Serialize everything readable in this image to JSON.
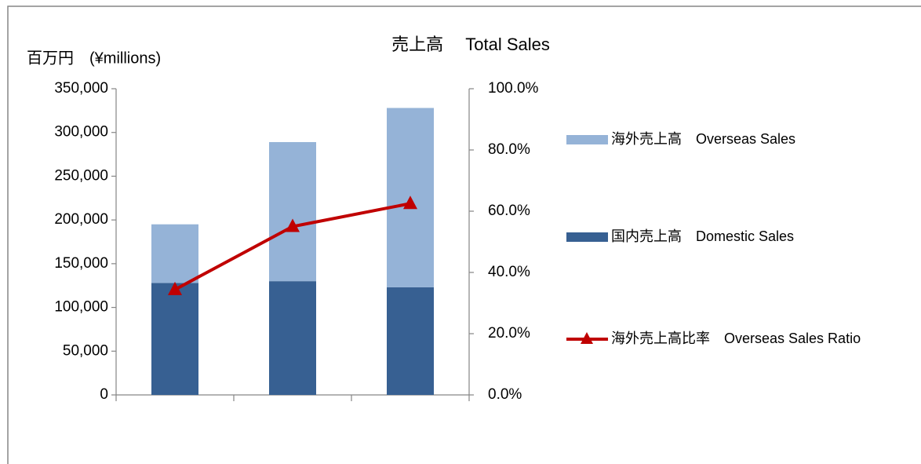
{
  "chart_data": {
    "type": "bar",
    "stacked": true,
    "title": "売上高　 Total Sales",
    "y_label": "百万円　(¥millions)",
    "categories": [
      null,
      null,
      null
    ],
    "series": [
      {
        "name": "国内売上高　Domestic Sales",
        "color": "#376092",
        "values": [
          128000,
          130000,
          123000
        ]
      },
      {
        "name": "海外売上高　Overseas Sales",
        "color": "#95b3d7",
        "values": [
          67000,
          159000,
          205000
        ]
      },
      {
        "name": "海外売上高比率　Overseas Sales Ratio",
        "color": "#c00000",
        "type": "line",
        "axis": "y2",
        "values": [
          34.4,
          55.0,
          62.5
        ]
      }
    ],
    "ylim": [
      0,
      350000
    ],
    "yticks": [
      0,
      {
        "value": 50000,
        "label": "50,000"
      },
      {
        "value": 100000,
        "label": "100,000"
      },
      {
        "value": 150000,
        "label": "150,000"
      },
      {
        "value": 200000,
        "label": "200,000"
      },
      {
        "value": 250000,
        "label": "250,000"
      },
      {
        "value": 300000,
        "label": "300,000"
      },
      {
        "value": 350000,
        "label": "350,000"
      }
    ],
    "y2lim": [
      0,
      100
    ],
    "y2ticks": [
      {
        "value": 0,
        "label": "0.0%"
      },
      {
        "value": 20,
        "label": "20.0%"
      },
      {
        "value": 40,
        "label": "40.0%"
      },
      {
        "value": 60,
        "label": "60.0%"
      },
      {
        "value": 80,
        "label": "80.0%"
      },
      {
        "value": 100,
        "label": "100.0%"
      }
    ],
    "grid": false,
    "legend": "right"
  }
}
